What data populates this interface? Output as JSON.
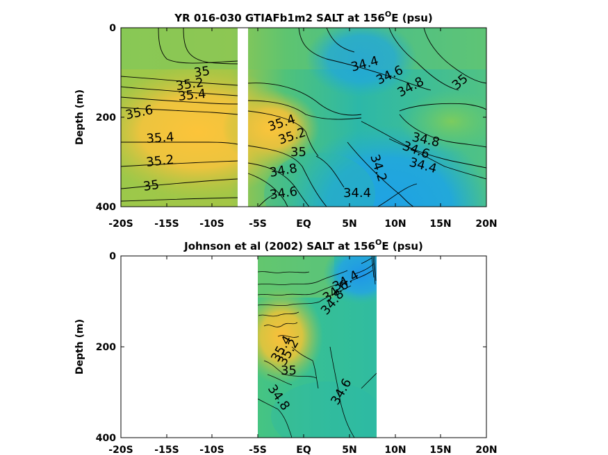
{
  "chart_data": [
    {
      "type": "contour",
      "title_main": "YR 016-030 GTIAFb1m2 SALT at 156",
      "title_sup": "O",
      "title_end": "E (psu)",
      "xlabel": "",
      "ylabel": "Depth (m)",
      "xlim": [
        -20,
        20
      ],
      "ylim": [
        0,
        400
      ],
      "y_reversed": true,
      "x_ticks": [
        {
          "value": -20,
          "label": "-20S"
        },
        {
          "value": -15,
          "label": "-15S"
        },
        {
          "value": -10,
          "label": "-10S"
        },
        {
          "value": -5,
          "label": "-5S"
        },
        {
          "value": 0,
          "label": "EQ"
        },
        {
          "value": 5,
          "label": "5N"
        },
        {
          "value": 10,
          "label": "10N"
        },
        {
          "value": 15,
          "label": "15N"
        },
        {
          "value": 20,
          "label": "20N"
        }
      ],
      "y_ticks": [
        {
          "value": 0,
          "label": "0"
        },
        {
          "value": 200,
          "label": "200"
        },
        {
          "value": 400,
          "label": "400"
        }
      ],
      "data_extent_x": [
        -20,
        20
      ],
      "gap_x": [
        -7.2,
        -6.6
      ],
      "contour_labels": [
        {
          "text": "35",
          "x": -13.9,
          "y": 97,
          "angle": -8
        },
        {
          "text": "35.2",
          "x": -14.6,
          "y": 125,
          "angle": -8
        },
        {
          "text": "35.4",
          "x": -14.1,
          "y": 146,
          "angle": -6
        },
        {
          "text": "35.6",
          "x": -18.2,
          "y": 185,
          "angle": -12
        },
        {
          "text": "35.4",
          "x": -15.3,
          "y": 248,
          "angle": -4
        },
        {
          "text": "35.2",
          "x": -15.0,
          "y": 300,
          "angle": -6
        },
        {
          "text": "35",
          "x": -16.0,
          "y": 352,
          "angle": -8
        },
        {
          "text": "35.4",
          "x": -3.8,
          "y": 210,
          "angle": -18
        },
        {
          "text": "35.2",
          "x": -2.3,
          "y": 244,
          "angle": -18
        },
        {
          "text": "35",
          "x": -0.6,
          "y": 277,
          "angle": 0
        },
        {
          "text": "34.8",
          "x": -3.6,
          "y": 322,
          "angle": -10
        },
        {
          "text": "34.6",
          "x": -2.0,
          "y": 370,
          "angle": -8
        },
        {
          "text": "34.4",
          "x": 6.1,
          "y": 75,
          "angle": -15
        },
        {
          "text": "34.6",
          "x": 9.0,
          "y": 108,
          "angle": -25
        },
        {
          "text": "34.8",
          "x": 10.6,
          "y": 140,
          "angle": -28
        },
        {
          "text": "35",
          "x": 17.1,
          "y": 118,
          "angle": -40
        },
        {
          "text": "34.8",
          "x": 14.4,
          "y": 243,
          "angle": 12
        },
        {
          "text": "34.6",
          "x": 12.6,
          "y": 268,
          "angle": 20
        },
        {
          "text": "34.4",
          "x": 14.0,
          "y": 305,
          "angle": 15
        },
        {
          "text": "34.2",
          "x": 7.8,
          "y": 315,
          "angle": 72
        },
        {
          "text": "34.4",
          "x": 6.1,
          "y": 364,
          "angle": 0
        }
      ]
    },
    {
      "type": "contour",
      "title_main": "Johnson et al (2002) SALT at 156",
      "title_sup": "O",
      "title_end": "E (psu)",
      "xlabel": "",
      "ylabel": "Depth (m)",
      "xlim": [
        -20,
        20
      ],
      "ylim": [
        0,
        400
      ],
      "y_reversed": true,
      "x_ticks": [
        {
          "value": -20,
          "label": "-20S"
        },
        {
          "value": -15,
          "label": "-15S"
        },
        {
          "value": -10,
          "label": "-10S"
        },
        {
          "value": -5,
          "label": "-5S"
        },
        {
          "value": 0,
          "label": "EQ"
        },
        {
          "value": 5,
          "label": "5N"
        },
        {
          "value": 10,
          "label": "10N"
        },
        {
          "value": 15,
          "label": "15N"
        },
        {
          "value": 20,
          "label": "20N"
        }
      ],
      "y_ticks": [
        {
          "value": 0,
          "label": "0"
        },
        {
          "value": 200,
          "label": "200"
        },
        {
          "value": 400,
          "label": "400"
        }
      ],
      "data_extent_x": [
        -5,
        8
      ],
      "contour_labels": [
        {
          "text": "34.4",
          "x": 5.2,
          "y": 65,
          "angle": -30
        },
        {
          "text": "34.6",
          "x": 4.4,
          "y": 95,
          "angle": -35
        },
        {
          "text": "34.8",
          "x": 3.9,
          "y": 115,
          "angle": -50
        },
        {
          "text": "35.4",
          "x": -2.2,
          "y": 230,
          "angle": -60
        },
        {
          "text": "35.2",
          "x": -1.7,
          "y": 255,
          "angle": -60
        },
        {
          "text": "35",
          "x": -1.5,
          "y": 268,
          "angle": 0
        },
        {
          "text": "34.8",
          "x": -2.8,
          "y": 330,
          "angle": 55
        },
        {
          "text": "34.6",
          "x": 4.8,
          "y": 300,
          "angle": -60
        }
      ]
    }
  ]
}
